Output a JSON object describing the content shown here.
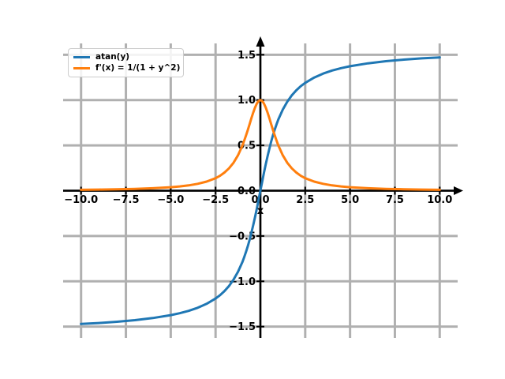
{
  "chart_data": {
    "type": "line",
    "title": "",
    "xlabel": "x",
    "ylabel": "",
    "xlim": [
      -11,
      11
    ],
    "ylim": [
      -1.625,
      1.625
    ],
    "grid": true,
    "grid_color": "#b0b0b0",
    "axis_color": "#000000",
    "background": "#ffffff",
    "x_ticks": [
      -10,
      -7.5,
      -5,
      -2.5,
      0,
      2.5,
      5,
      7.5,
      10
    ],
    "x_tick_labels": [
      "−10.0",
      "−7.5",
      "−5.0",
      "−2.5",
      "0.0",
      "2.5",
      "5.0",
      "7.5",
      "10.0"
    ],
    "y_ticks": [
      1.5,
      1.0,
      0.5,
      0.0,
      -0.5,
      -1.0,
      -1.5
    ],
    "y_tick_labels": [
      "1.5",
      "1.0",
      "0.5",
      "0.0",
      "−0.5",
      "−1.0",
      "−1.5"
    ],
    "legend": {
      "position": "upper-left",
      "entries": [
        {
          "label": "atan(y)",
          "color": "#1f77b4"
        },
        {
          "label": "f'(x) = 1/(1 + y^2)",
          "color": "#ff7f0e"
        }
      ]
    },
    "x": [
      -10,
      -9,
      -8,
      -7,
      -6,
      -5,
      -4.5,
      -4,
      -3.5,
      -3,
      -2.5,
      -2.25,
      -2,
      -1.75,
      -1.5,
      -1.25,
      -1,
      -0.9,
      -0.8,
      -0.7,
      -0.6,
      -0.5,
      -0.4,
      -0.3,
      -0.2,
      -0.1,
      0,
      0.1,
      0.2,
      0.3,
      0.4,
      0.5,
      0.6,
      0.7,
      0.8,
      0.9,
      1,
      1.25,
      1.5,
      1.75,
      2,
      2.25,
      2.5,
      3,
      3.5,
      4,
      4.5,
      5,
      6,
      7,
      8,
      9,
      10
    ],
    "series": [
      {
        "name": "atan(y)",
        "color": "#1f77b4",
        "values": [
          -1.4711,
          -1.4601,
          -1.4464,
          -1.4289,
          -1.4056,
          -1.3734,
          -1.3521,
          -1.3258,
          -1.2925,
          -1.249,
          -1.1903,
          -1.1526,
          -1.1071,
          -1.0517,
          -0.9828,
          -0.8961,
          -0.7854,
          -0.7328,
          -0.6747,
          -0.6107,
          -0.5404,
          -0.4636,
          -0.3805,
          -0.2915,
          -0.1974,
          -0.0997,
          0,
          0.0997,
          0.1974,
          0.2915,
          0.3805,
          0.4636,
          0.5404,
          0.6107,
          0.6747,
          0.7328,
          0.7854,
          0.8961,
          0.9828,
          1.0517,
          1.1071,
          1.1526,
          1.1903,
          1.249,
          1.2925,
          1.3258,
          1.3521,
          1.3734,
          1.4056,
          1.4289,
          1.4464,
          1.4601,
          1.4711
        ]
      },
      {
        "name": "f'(x) = 1/(1 + y^2)",
        "color": "#ff7f0e",
        "values": [
          0.0099,
          0.0122,
          0.0154,
          0.02,
          0.027,
          0.0385,
          0.0471,
          0.0588,
          0.0755,
          0.1,
          0.1379,
          0.1649,
          0.2,
          0.2462,
          0.3077,
          0.3902,
          0.5,
          0.5525,
          0.6098,
          0.6711,
          0.7353,
          0.8,
          0.8621,
          0.9174,
          0.9615,
          0.9901,
          1,
          0.9901,
          0.9615,
          0.9174,
          0.8621,
          0.8,
          0.7353,
          0.6711,
          0.6098,
          0.5525,
          0.5,
          0.3902,
          0.3077,
          0.2462,
          0.2,
          0.1649,
          0.1379,
          0.1,
          0.0755,
          0.0588,
          0.0471,
          0.0385,
          0.027,
          0.02,
          0.0154,
          0.0122,
          0.0099
        ]
      }
    ]
  }
}
